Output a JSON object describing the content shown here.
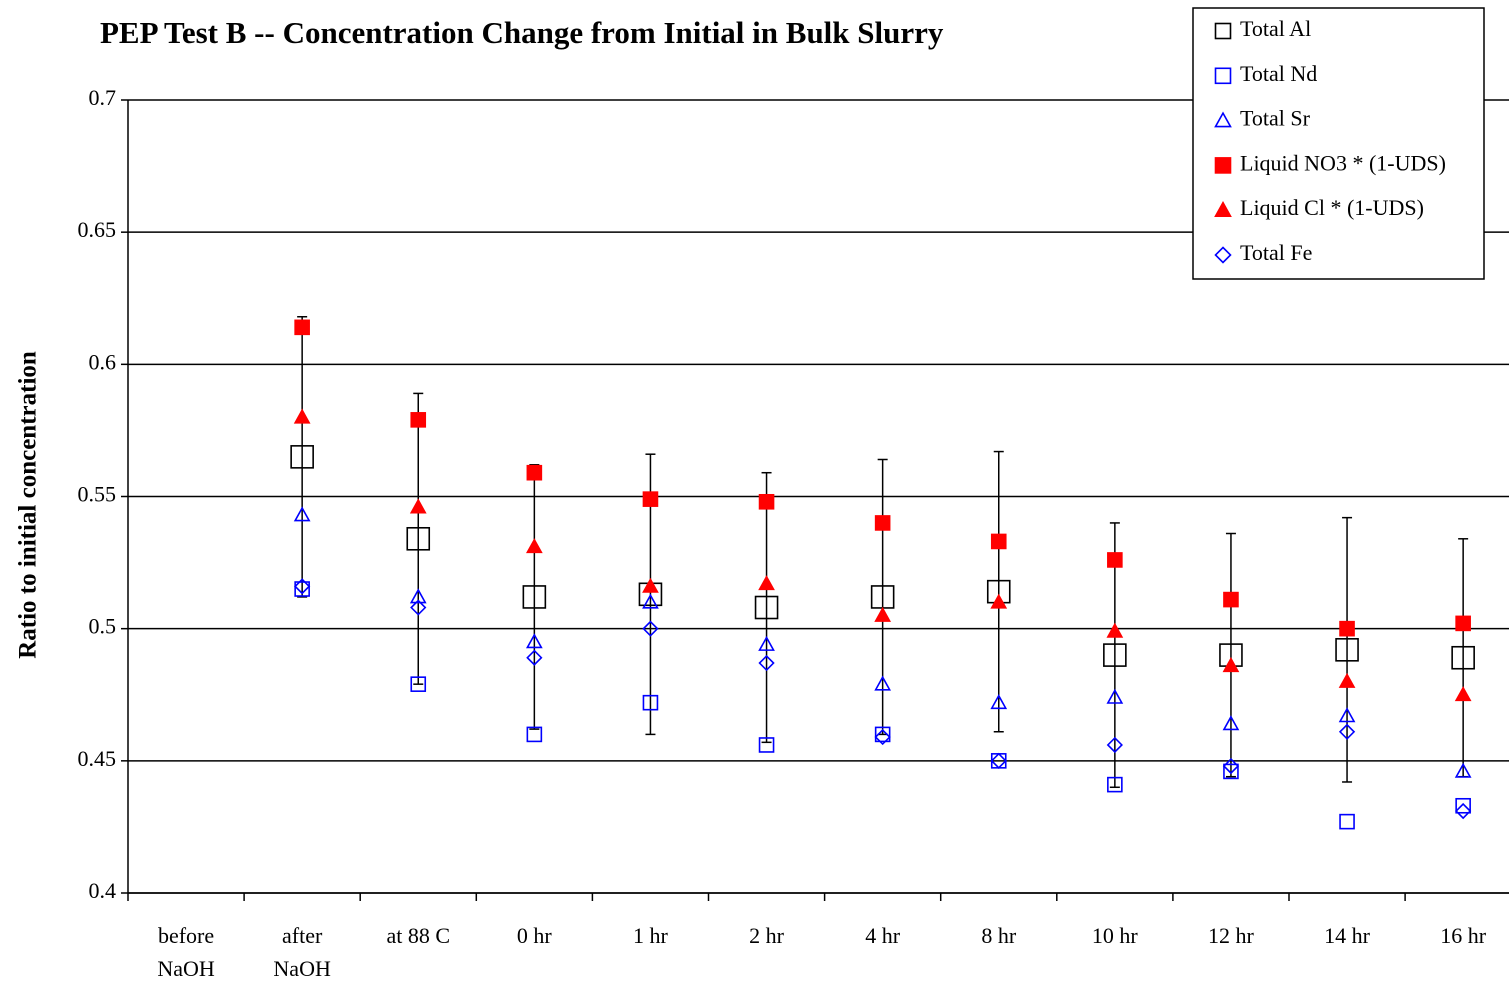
{
  "chart_data": {
    "type": "scatter",
    "title": "PEP Test B -- Concentration Change from Initial in Bulk Slurry",
    "y_label": "Ratio to initial concentration",
    "categories": [
      "before\nNaOH",
      "after\nNaOH",
      "at 88 C",
      "0 hr",
      "1 hr",
      "2 hr",
      "4 hr",
      "8 hr",
      "10 hr",
      "12 hr",
      "14 hr",
      "16 hr"
    ],
    "ylim": [
      0.4,
      0.7
    ],
    "yticks": [
      0.4,
      0.45,
      0.5,
      0.55,
      0.6,
      0.65,
      0.7
    ],
    "grid": true,
    "legend": "top-right",
    "series": [
      {
        "name": "Total Al",
        "color": "#000000",
        "marker": "square",
        "filled": false,
        "values": [
          null,
          0.565,
          0.534,
          0.512,
          0.513,
          0.508,
          0.512,
          0.514,
          0.49,
          0.49,
          0.492,
          0.489
        ],
        "errors": [
          null,
          0.053,
          0.055,
          0.05,
          0.053,
          0.051,
          0.052,
          0.053,
          0.05,
          0.046,
          0.05,
          0.045
        ]
      },
      {
        "name": "Total Nd",
        "color": "#0000ff",
        "marker": "square",
        "filled": false,
        "values": [
          null,
          0.515,
          0.479,
          0.46,
          0.472,
          0.456,
          0.46,
          0.45,
          0.441,
          0.446,
          0.427,
          0.433
        ]
      },
      {
        "name": "Total Sr",
        "color": "#0000ff",
        "marker": "triangle",
        "filled": false,
        "values": [
          null,
          0.543,
          0.512,
          0.495,
          0.51,
          0.494,
          0.479,
          0.472,
          0.474,
          0.464,
          0.467,
          0.446
        ]
      },
      {
        "name": "Liquid NO3 * (1-UDS)",
        "color": "#ff0000",
        "marker": "square",
        "filled": true,
        "values": [
          null,
          0.614,
          0.579,
          0.559,
          0.549,
          0.548,
          0.54,
          0.533,
          0.526,
          0.511,
          0.5,
          0.502
        ]
      },
      {
        "name": "Liquid Cl * (1-UDS)",
        "color": "#ff0000",
        "marker": "triangle",
        "filled": true,
        "values": [
          null,
          0.58,
          0.546,
          0.531,
          0.516,
          0.517,
          0.505,
          0.51,
          0.499,
          0.486,
          0.48,
          0.475
        ]
      },
      {
        "name": "Total Fe",
        "color": "#0000ff",
        "marker": "diamond",
        "filled": false,
        "values": [
          null,
          0.516,
          0.508,
          0.489,
          0.5,
          0.487,
          0.459,
          0.45,
          0.456,
          0.448,
          0.461,
          0.431
        ]
      }
    ]
  }
}
